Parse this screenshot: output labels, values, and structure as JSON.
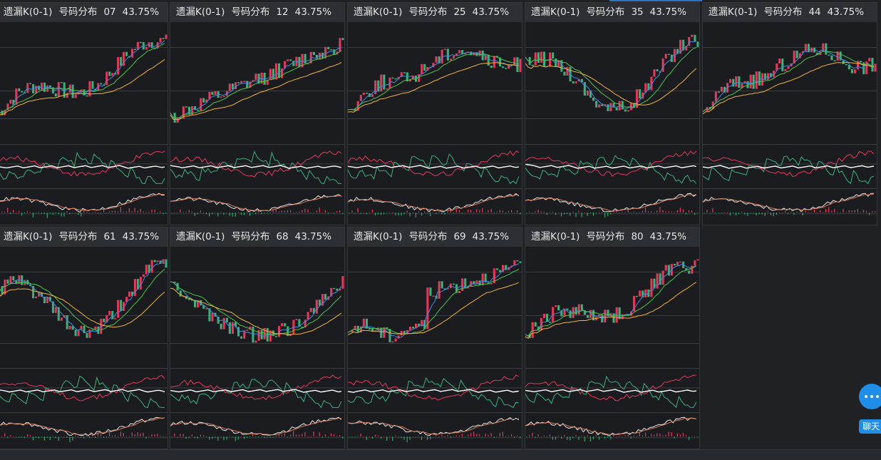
{
  "panels": [
    {
      "title": "遗漏K(0-1)",
      "subtitle": "号码分布",
      "number": "07",
      "percent": "43.75%",
      "seed": 7,
      "trend": "up"
    },
    {
      "title": "遗漏K(0-1)",
      "subtitle": "号码分布",
      "number": "12",
      "percent": "43.75%",
      "seed": 12,
      "trend": "steady-up"
    },
    {
      "title": "遗漏K(0-1)",
      "subtitle": "号码分布",
      "number": "25",
      "percent": "43.75%",
      "seed": 25,
      "trend": "up-flat"
    },
    {
      "title": "遗漏K(0-1)",
      "subtitle": "号码分布",
      "number": "35",
      "percent": "43.75%",
      "seed": 35,
      "trend": "wave"
    },
    {
      "title": "遗漏K(0-1)",
      "subtitle": "号码分布",
      "number": "44",
      "percent": "43.75%",
      "seed": 44,
      "trend": "up-flat"
    },
    {
      "title": "遗漏K(0-1)",
      "subtitle": "号码分布",
      "number": "61",
      "percent": "43.75%",
      "seed": 61,
      "trend": "wave"
    },
    {
      "title": "遗漏K(0-1)",
      "subtitle": "号码分布",
      "number": "68",
      "percent": "43.75%",
      "seed": 68,
      "trend": "down-up"
    },
    {
      "title": "遗漏K(0-1)",
      "subtitle": "号码分布",
      "number": "69",
      "percent": "43.75%",
      "seed": 69,
      "trend": "step-up"
    },
    {
      "title": "遗漏K(0-1)",
      "subtitle": "号码分布",
      "number": "80",
      "percent": "43.75%",
      "seed": 80,
      "trend": "up"
    }
  ],
  "chat": {
    "label": "聊天"
  },
  "colors": {
    "up": "#e8365a",
    "down": "#3ab07a",
    "ma_fast": "#3b8de0",
    "ma_mid": "#4ec24e",
    "ma_slow": "#f0b43a",
    "kdj_white": "#ffffff",
    "macd_pos": "#e8365a",
    "macd_neg": "#2fa36a"
  }
}
